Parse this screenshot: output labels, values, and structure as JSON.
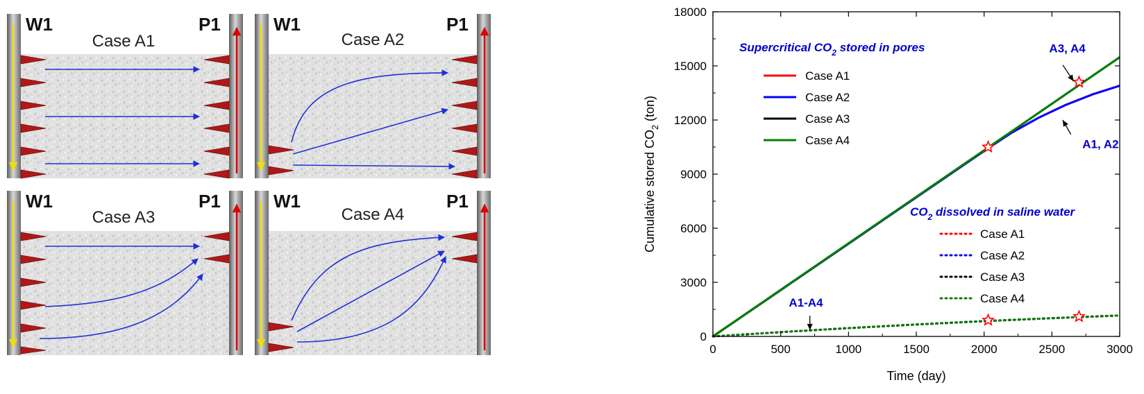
{
  "panels": [
    {
      "well_left": "W1",
      "well_right": "P1",
      "title": "Case A1"
    },
    {
      "well_left": "W1",
      "well_right": "P1",
      "title": "Case A2"
    },
    {
      "well_left": "W1",
      "well_right": "P1",
      "title": "Case A3"
    },
    {
      "well_left": "W1",
      "well_right": "P1",
      "title": "Case A4"
    }
  ],
  "chart_data": {
    "type": "line",
    "xlabel": "Time (day)",
    "ylabel_parts": {
      "pre": "Cumulative stored CO",
      "sub": "2",
      "post": " (ton)"
    },
    "xlim": [
      0,
      3000
    ],
    "ylim": [
      0,
      18000
    ],
    "xticks": [
      0,
      500,
      1000,
      1500,
      2000,
      2500,
      3000
    ],
    "yticks": [
      0,
      3000,
      6000,
      9000,
      12000,
      15000,
      18000
    ],
    "xtick_labels": [
      "0",
      "500",
      "1000",
      "1500",
      "2000",
      "2500",
      "3000"
    ],
    "ytick_labels": [
      "0",
      "3000",
      "6000",
      "9000",
      "12000",
      "15000",
      "18000"
    ],
    "group_titles": {
      "supercritical": {
        "pre": "Supercritical CO",
        "sub": "2",
        "post": " stored in pores"
      },
      "dissolved": {
        "pre": "CO",
        "sub": "2",
        "post": " dissolved in saline water"
      }
    },
    "legend_supercritical": [
      "Case A1",
      "Case A2",
      "Case A3",
      "Case A4"
    ],
    "legend_dissolved": [
      "Case A1",
      "Case A2",
      "Case A3",
      "Case A4"
    ],
    "colors": {
      "A1": "#ff0000",
      "A2": "#0000ff",
      "A3": "#000000",
      "A4": "#008000",
      "title": "#0000cc",
      "marker": "#ff0000"
    },
    "series": [
      {
        "name": "Case A1 supercritical",
        "group": "supercritical",
        "style": "solid",
        "color_key": "A1",
        "x": [
          0,
          500,
          1000,
          1500,
          2000,
          2030,
          2200,
          2400,
          2600,
          2800,
          3000
        ],
        "y": [
          0,
          2570,
          5140,
          7710,
          10280,
          10440,
          11280,
          12120,
          12830,
          13420,
          13900
        ]
      },
      {
        "name": "Case A2 supercritical",
        "group": "supercritical",
        "style": "solid",
        "color_key": "A2",
        "x": [
          0,
          500,
          1000,
          1500,
          2000,
          2030,
          2200,
          2400,
          2600,
          2800,
          3000
        ],
        "y": [
          0,
          2570,
          5140,
          7710,
          10280,
          10440,
          11280,
          12120,
          12830,
          13420,
          13900
        ]
      },
      {
        "name": "Case A3 supercritical",
        "group": "supercritical",
        "style": "solid",
        "color_key": "A3",
        "x": [
          0,
          500,
          1000,
          1500,
          2000,
          2500,
          3000
        ],
        "y": [
          0,
          2580,
          5160,
          7740,
          10320,
          12900,
          15480
        ]
      },
      {
        "name": "Case A4 supercritical",
        "group": "supercritical",
        "style": "solid",
        "color_key": "A4",
        "x": [
          0,
          500,
          1000,
          1500,
          2000,
          2500,
          3000
        ],
        "y": [
          0,
          2580,
          5160,
          7740,
          10320,
          12900,
          15480
        ]
      },
      {
        "name": "Case A1 dissolved",
        "group": "dissolved",
        "style": "dotted",
        "color_key": "A1",
        "x": [
          0,
          500,
          1000,
          1500,
          2000,
          2500,
          3000
        ],
        "y": [
          0,
          240,
          460,
          660,
          850,
          1010,
          1160
        ]
      },
      {
        "name": "Case A2 dissolved",
        "group": "dissolved",
        "style": "dotted",
        "color_key": "A2",
        "x": [
          0,
          500,
          1000,
          1500,
          2000,
          2500,
          3000
        ],
        "y": [
          0,
          240,
          460,
          660,
          850,
          1010,
          1160
        ]
      },
      {
        "name": "Case A3 dissolved",
        "group": "dissolved",
        "style": "dotted",
        "color_key": "A3",
        "x": [
          0,
          500,
          1000,
          1500,
          2000,
          2500,
          3000
        ],
        "y": [
          0,
          240,
          460,
          660,
          850,
          1010,
          1160
        ]
      },
      {
        "name": "Case A4 dissolved",
        "group": "dissolved",
        "style": "dotted",
        "color_key": "A4",
        "x": [
          0,
          500,
          1000,
          1500,
          2000,
          2500,
          3000
        ],
        "y": [
          0,
          240,
          460,
          660,
          850,
          1010,
          1160
        ]
      }
    ],
    "star_markers": [
      {
        "x": 2030,
        "y": 10500
      },
      {
        "x": 2700,
        "y": 14100
      },
      {
        "x": 2030,
        "y": 900
      },
      {
        "x": 2700,
        "y": 1100
      }
    ],
    "annotations": [
      {
        "text": "A3, A4",
        "label_x": 2480,
        "label_y": 15750,
        "arrow_from": [
          2580,
          15050
        ],
        "arrow_to": [
          2660,
          14150
        ]
      },
      {
        "text": "A1, A2",
        "label_x": 2725,
        "label_y": 10450,
        "arrow_from": [
          2640,
          11200
        ],
        "arrow_to": [
          2580,
          12000
        ]
      },
      {
        "text": "A1-A4",
        "label_x": 560,
        "label_y": 1650,
        "arrow_from": [
          715,
          1150
        ],
        "arrow_to": [
          715,
          350
        ]
      }
    ]
  }
}
